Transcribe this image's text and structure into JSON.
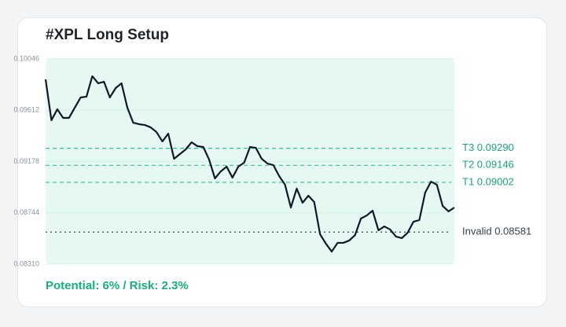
{
  "chart_data": {
    "type": "line",
    "title": "#XPL Long Setup",
    "footer": "Potential: 6% / Risk: 2.3%",
    "values": [
      0.09873,
      0.09527,
      0.0962,
      0.09547,
      0.09547,
      0.09634,
      0.0972,
      0.09727,
      0.099,
      0.0984,
      0.09853,
      0.0972,
      0.098,
      0.0984,
      0.09634,
      0.09507,
      0.09494,
      0.09487,
      0.09467,
      0.09427,
      0.09348,
      0.09414,
      0.09201,
      0.09241,
      0.09281,
      0.09341,
      0.09308,
      0.09301,
      0.09195,
      0.09035,
      0.09095,
      0.09135,
      0.09042,
      0.09135,
      0.09168,
      0.09301,
      0.09294,
      0.09201,
      0.09161,
      0.09148,
      0.09055,
      0.08982,
      0.08789,
      0.08949,
      0.08829,
      0.08889,
      0.08835,
      0.08563,
      0.08483,
      0.08416,
      0.0849,
      0.0849,
      0.0851,
      0.08556,
      0.08696,
      0.08722,
      0.08762,
      0.08596,
      0.08629,
      0.08603,
      0.08543,
      0.0853,
      0.08576,
      0.08669,
      0.08683,
      0.08915,
      0.09008,
      0.08982,
      0.08802,
      0.08756,
      0.08789
    ],
    "color": "#111827",
    "ylim": [
      0.0831,
      0.10046
    ],
    "yticks": [
      0.0831,
      0.08744,
      0.09178,
      0.09612,
      0.10046
    ],
    "ytick_labels": [
      "0.08310",
      "0.08744",
      "0.09178",
      "0.09612",
      "0.10046"
    ],
    "levels": [
      {
        "value": 0.0929,
        "label": "T3 0.09290",
        "color": "#34c28e",
        "style": "dashed"
      },
      {
        "value": 0.09146,
        "label": "T2 0.09146",
        "color": "#34c28e",
        "style": "dashed"
      },
      {
        "value": 0.09002,
        "label": "T1 0.09002",
        "color": "#34c28e",
        "style": "dashed"
      },
      {
        "value": 0.08581,
        "label": "Invalid 0.08581",
        "color": "#374151",
        "style": "dotted"
      }
    ]
  }
}
